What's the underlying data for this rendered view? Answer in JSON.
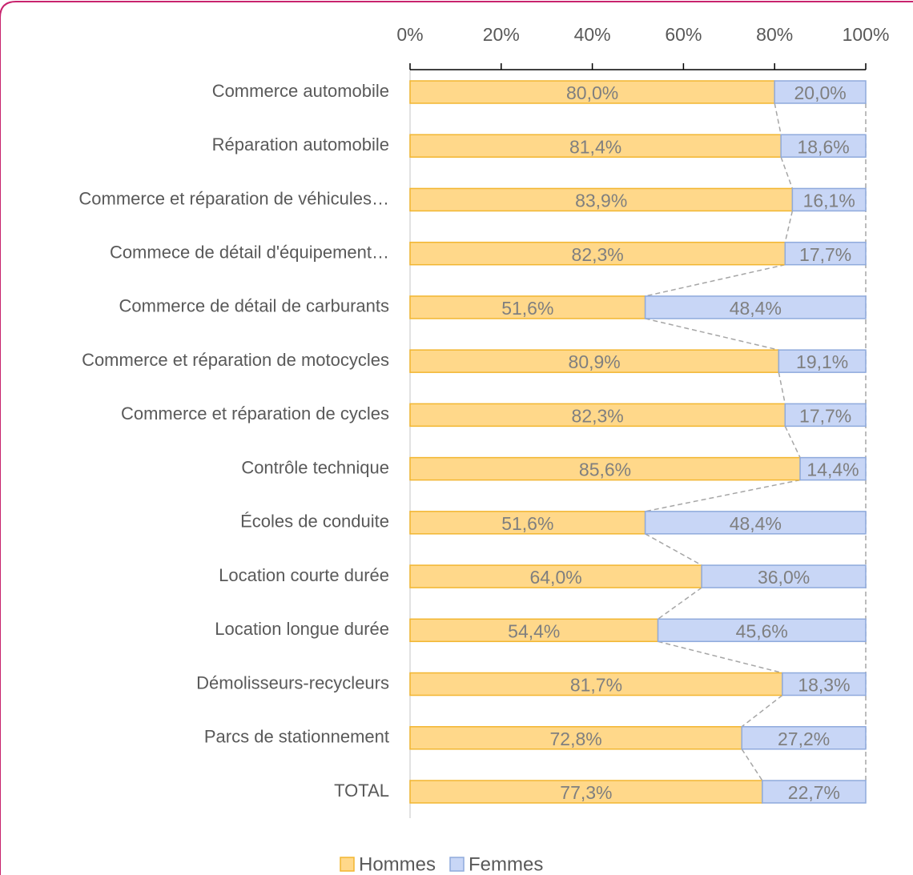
{
  "chart_data": {
    "type": "bar",
    "orientation": "horizontal",
    "stacked": "percent",
    "categories": [
      "Commerce automobile",
      "Réparation automobile",
      "Commerce et réparation de véhicules…",
      "Commece de détail d'équipement…",
      "Commerce de détail de carburants",
      "Commerce et réparation de motocycles",
      "Commerce et réparation de cycles",
      "Contrôle technique",
      "Écoles de conduite",
      "Location courte durée",
      "Location longue durée",
      "Démolisseurs-recycleurs",
      "Parcs de stationnement",
      "TOTAL"
    ],
    "series": [
      {
        "name": "Hommes",
        "color": "#ffd88a",
        "edge": "#f2b630",
        "values": [
          80.0,
          81.4,
          83.9,
          82.3,
          51.6,
          80.9,
          82.3,
          85.6,
          51.6,
          64.0,
          54.4,
          81.7,
          72.8,
          77.3
        ],
        "value_labels": [
          "80,0%",
          "81,4%",
          "83,9%",
          "82,3%",
          "51,6%",
          "80,9%",
          "82,3%",
          "85,6%",
          "51,6%",
          "64,0%",
          "54,4%",
          "81,7%",
          "72,8%",
          "77,3%"
        ]
      },
      {
        "name": "Femmes",
        "color": "#c8d6f6",
        "edge": "#8faadc",
        "values": [
          20.0,
          18.6,
          16.1,
          17.7,
          48.4,
          19.1,
          17.7,
          14.4,
          48.4,
          36.0,
          45.6,
          18.3,
          27.2,
          22.7
        ],
        "value_labels": [
          "20,0%",
          "18,6%",
          "16,1%",
          "17,7%",
          "48,4%",
          "19,1%",
          "17,7%",
          "14,4%",
          "48,4%",
          "36,0%",
          "45,6%",
          "18,3%",
          "27,2%",
          "22,7%"
        ]
      }
    ],
    "xlim": [
      0,
      100
    ],
    "xticks": [
      {
        "value": 0,
        "label": "0%"
      },
      {
        "value": 20,
        "label": "20%"
      },
      {
        "value": 40,
        "label": "40%"
      },
      {
        "value": 60,
        "label": "60%"
      },
      {
        "value": 80,
        "label": "80%"
      },
      {
        "value": 100,
        "label": "100%"
      }
    ],
    "legend": "bottom"
  }
}
